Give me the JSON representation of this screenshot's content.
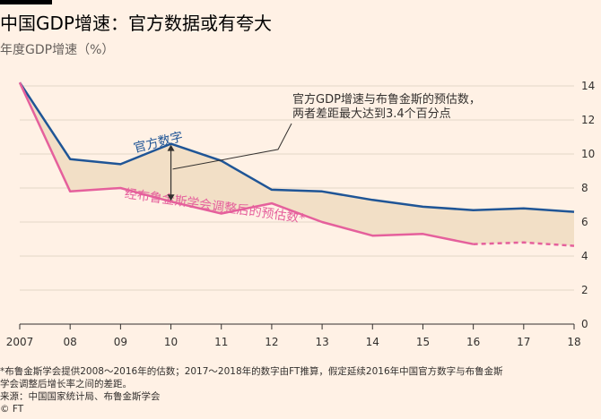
{
  "header": {
    "title": "中国GDP增速：官方数据或有夸大",
    "subtitle": "年度GDP增速（%）"
  },
  "chart_data": {
    "type": "line",
    "categories": [
      "2007",
      "08",
      "09",
      "10",
      "11",
      "12",
      "13",
      "14",
      "15",
      "16",
      "17",
      "18"
    ],
    "ylim": [
      0,
      14
    ],
    "yticks": [
      "0",
      "2",
      "4",
      "6",
      "8",
      "10",
      "12",
      "14"
    ],
    "grid": true,
    "series": [
      {
        "name": "官方数字",
        "color": "#1f5596",
        "values": [
          14.2,
          9.7,
          9.4,
          10.6,
          9.6,
          7.9,
          7.8,
          7.3,
          6.9,
          6.7,
          6.8,
          6.6
        ]
      },
      {
        "name": "经布鲁金斯学会调整后的预估数*",
        "color": "#e5609c",
        "values": [
          14.2,
          7.8,
          8.0,
          7.2,
          6.5,
          7.1,
          6.0,
          5.2,
          5.3,
          4.7,
          4.8,
          4.6
        ],
        "projected_from": "16"
      }
    ],
    "annotation": {
      "lines": [
        "官方GDP增速与布鲁金斯的预估数，",
        "两者差距最大达到3.4个百分点"
      ],
      "at": "10"
    },
    "fill_color": "#f2dfc6"
  },
  "footnotes": {
    "note_line1": "*布鲁金斯学会提供2008～2016年的估数；2017～2018年的数字由FT推算，假定延续2016年中国官方数字与布鲁金斯",
    "note_line2": "学会调整后增长率之间的差距。",
    "source": "来源：中国国家统计局、布鲁金斯学会",
    "credit": "© FT"
  }
}
